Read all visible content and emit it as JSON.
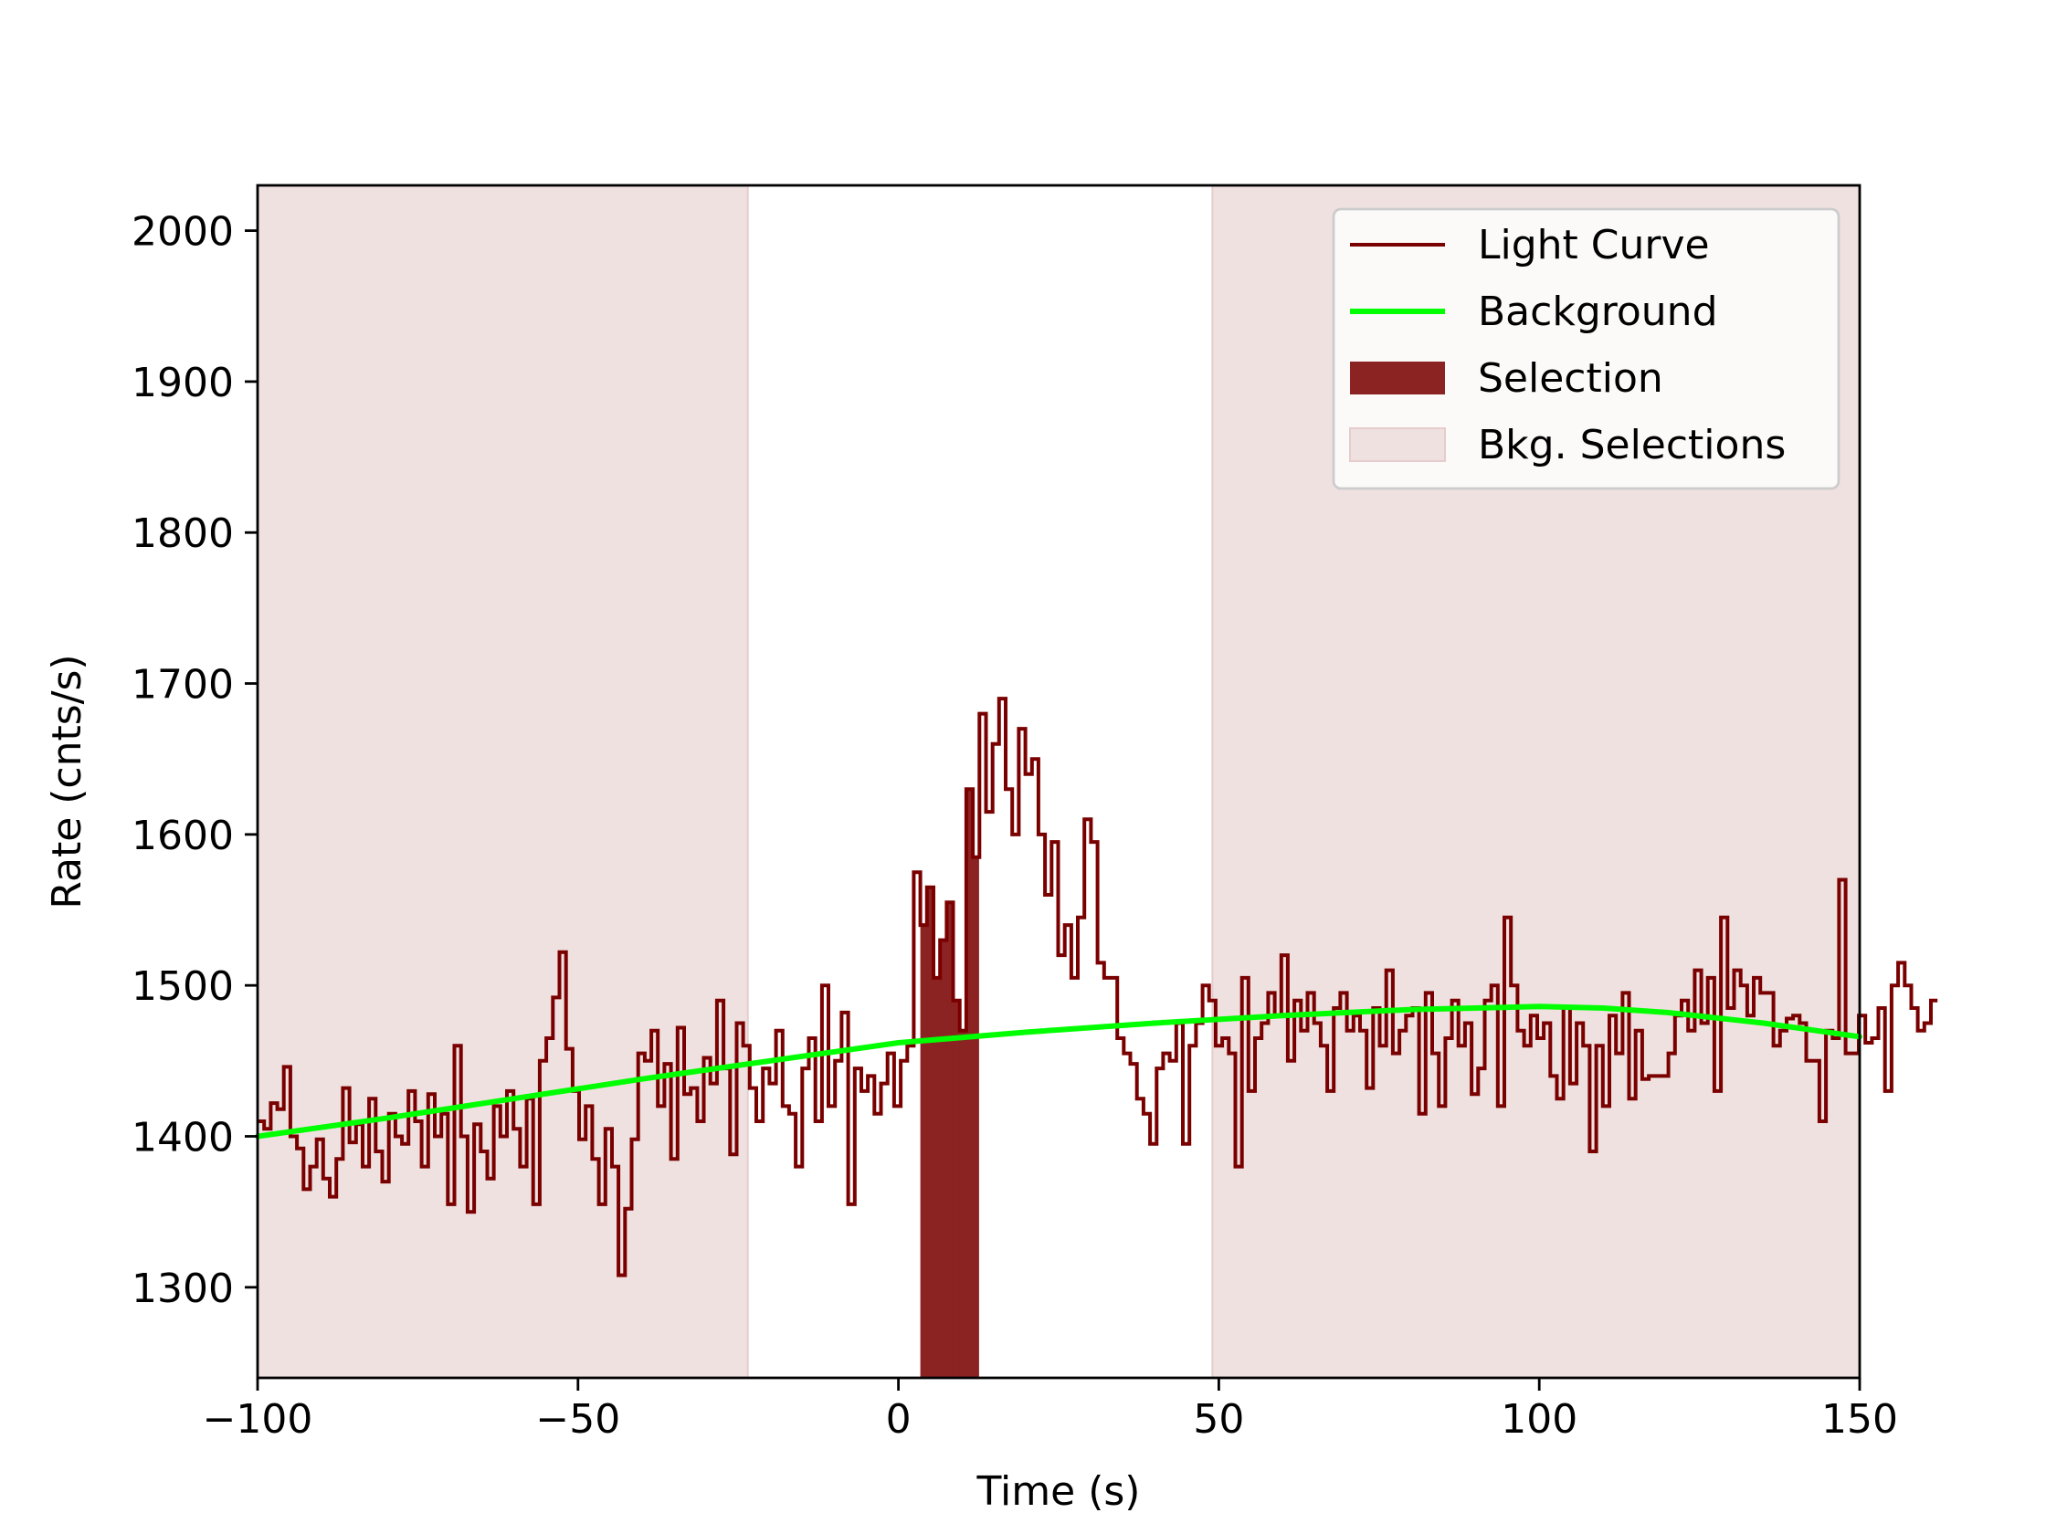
{
  "chart_data": {
    "type": "line",
    "title": "",
    "xlabel": "Time (s)",
    "ylabel": "Rate (cnts/s)",
    "xlim": [
      -100,
      150
    ],
    "ylim": [
      1240,
      2030
    ],
    "xticks": [
      -100,
      -50,
      0,
      50,
      100,
      150
    ],
    "xtick_labels": [
      "−100",
      "−50",
      "0",
      "50",
      "100",
      "150"
    ],
    "yticks": [
      1300,
      1400,
      1500,
      1600,
      1700,
      1800,
      1900,
      2000
    ],
    "ytick_labels": [
      "1300",
      "1400",
      "1500",
      "1600",
      "1700",
      "1800",
      "1900",
      "2000"
    ],
    "grid": false,
    "legend_position": "top-right",
    "colors": {
      "light_curve": "#7a0000",
      "background": "#00ff00",
      "selection": "#8b2323",
      "bkg_selection": "#f0e1e1"
    },
    "legend": [
      {
        "label": "Light Curve",
        "kind": "line",
        "color": "#7a0000"
      },
      {
        "label": "Background",
        "kind": "line-thick",
        "color": "#00ff00"
      },
      {
        "label": "Selection",
        "kind": "patch",
        "color": "#8b2323"
      },
      {
        "label": "Bkg. Selections",
        "kind": "patch-light",
        "color": "#f0e1e1"
      }
    ],
    "bin_width": 1.024,
    "bin_start": -100,
    "light_curve": [
      1410,
      1405,
      1422,
      1418,
      1446,
      1400,
      1392,
      1365,
      1380,
      1398,
      1372,
      1360,
      1385,
      1432,
      1396,
      1408,
      1380,
      1425,
      1390,
      1370,
      1415,
      1400,
      1395,
      1430,
      1410,
      1380,
      1428,
      1400,
      1415,
      1355,
      1460,
      1400,
      1350,
      1408,
      1390,
      1372,
      1420,
      1400,
      1430,
      1405,
      1380,
      1425,
      1355,
      1450,
      1465,
      1492,
      1522,
      1458,
      1430,
      1398,
      1420,
      1385,
      1355,
      1405,
      1380,
      1308,
      1352,
      1398,
      1455,
      1450,
      1470,
      1420,
      1448,
      1385,
      1472,
      1428,
      1432,
      1410,
      1452,
      1435,
      1490,
      1445,
      1388,
      1475,
      1460,
      1432,
      1410,
      1445,
      1435,
      1470,
      1420,
      1415,
      1380,
      1445,
      1465,
      1410,
      1500,
      1420,
      1450,
      1482,
      1355,
      1445,
      1430,
      1440,
      1415,
      1435,
      1455,
      1420,
      1450,
      1460,
      1575,
      1540,
      1565,
      1505,
      1530,
      1555,
      1490,
      1470,
      1630,
      1585,
      1680,
      1615,
      1660,
      1690,
      1630,
      1600,
      1670,
      1640,
      1650,
      1600,
      1560,
      1595,
      1520,
      1540,
      1505,
      1545,
      1610,
      1595,
      1515,
      1505,
      1505,
      1465,
      1455,
      1448,
      1425,
      1415,
      1395,
      1445,
      1455,
      1450,
      1475,
      1395,
      1460,
      1475,
      1500,
      1490,
      1460,
      1465,
      1455,
      1380,
      1505,
      1430,
      1465,
      1475,
      1495,
      1480,
      1520,
      1450,
      1490,
      1470,
      1495,
      1475,
      1460,
      1430,
      1485,
      1495,
      1470,
      1480,
      1470,
      1432,
      1485,
      1460,
      1510,
      1455,
      1470,
      1480,
      1485,
      1415,
      1495,
      1455,
      1420,
      1465,
      1490,
      1460,
      1475,
      1428,
      1445,
      1490,
      1500,
      1420,
      1545,
      1500,
      1470,
      1460,
      1480,
      1465,
      1475,
      1440,
      1425,
      1485,
      1435,
      1475,
      1460,
      1390,
      1460,
      1420,
      1480,
      1455,
      1495,
      1425,
      1470,
      1438,
      1440,
      1440,
      1440,
      1455,
      1480,
      1490,
      1470,
      1510,
      1475,
      1505,
      1430,
      1545,
      1485,
      1510,
      1500,
      1480,
      1505,
      1495,
      1495,
      1460,
      1470,
      1478,
      1480,
      1475,
      1450,
      1450,
      1410,
      1470,
      1465,
      1570,
      1455,
      1455,
      1480,
      1462,
      1465,
      1485,
      1430,
      1500,
      1515,
      1500,
      1485,
      1470,
      1475,
      1490
    ],
    "background_model": [
      1400,
      1412,
      1425,
      1438,
      1450,
      1462,
      1469,
      1475,
      1480,
      1484,
      1486,
      1485,
      1482,
      1475,
      1466
    ],
    "background_model_x": [
      -100,
      -80,
      -60,
      -40,
      -20,
      0,
      20,
      40,
      60,
      80,
      100,
      110,
      120,
      135,
      150
    ],
    "selection_interval": [
      3,
      12.5
    ],
    "bkg_selection_intervals": [
      [
        -100,
        -23.5
      ],
      [
        49,
        150
      ]
    ]
  }
}
